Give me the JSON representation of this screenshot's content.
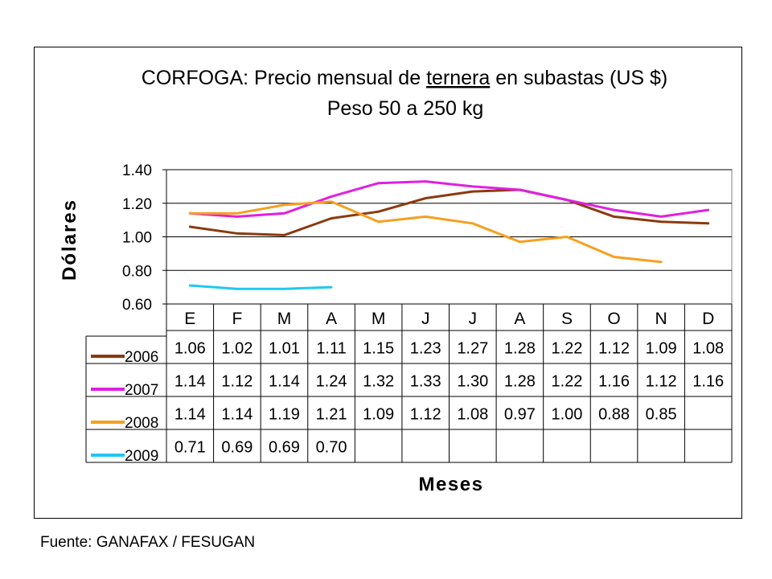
{
  "chart_data": {
    "type": "line",
    "title_parts": [
      "CORFOGA: Precio mensual de ",
      "ternera",
      " en subastas (US $)"
    ],
    "subtitle": "Peso 50 a 250 kg",
    "xlabel": "Meses",
    "ylabel": "Dólares",
    "categories": [
      "E",
      "F",
      "M",
      "A",
      "M",
      "J",
      "J",
      "A",
      "S",
      "O",
      "N",
      "D"
    ],
    "ylim": [
      0.6,
      1.4
    ],
    "yticks": [
      "0.60",
      "0.80",
      "1.00",
      "1.20",
      "1.40"
    ],
    "grid": true,
    "series": [
      {
        "name": "2006",
        "color": "#8B3A0F",
        "values": [
          1.06,
          1.02,
          1.01,
          1.11,
          1.15,
          1.23,
          1.27,
          1.28,
          1.22,
          1.12,
          1.09,
          1.08
        ],
        "labels": [
          "1.06",
          "1.02",
          "1.01",
          "1.11",
          "1.15",
          "1.23",
          "1.27",
          "1.28",
          "1.22",
          "1.12",
          "1.09",
          "1.08"
        ]
      },
      {
        "name": "2007",
        "color": "#E020E0",
        "values": [
          1.14,
          1.12,
          1.14,
          1.24,
          1.32,
          1.33,
          1.3,
          1.28,
          1.22,
          1.16,
          1.12,
          1.16
        ],
        "labels": [
          "1.14",
          "1.12",
          "1.14",
          "1.24",
          "1.32",
          "1.33",
          "1.30",
          "1.28",
          "1.22",
          "1.16",
          "1.12",
          "1.16"
        ]
      },
      {
        "name": "2008",
        "color": "#F5A020",
        "values": [
          1.14,
          1.14,
          1.19,
          1.21,
          1.09,
          1.12,
          1.08,
          0.97,
          1.0,
          0.88,
          0.85,
          null
        ],
        "labels": [
          "1.14",
          "1.14",
          "1.19",
          "1.21",
          "1.09",
          "1.12",
          "1.08",
          "0.97",
          "1.00",
          "0.88",
          "0.85",
          ""
        ]
      },
      {
        "name": "2009",
        "color": "#20C8F0",
        "values": [
          0.71,
          0.69,
          0.69,
          0.7,
          null,
          null,
          null,
          null,
          null,
          null,
          null,
          null
        ],
        "labels": [
          "0.71",
          "0.69",
          "0.69",
          "0.70",
          "",
          "",
          "",
          "",
          "",
          "",
          "",
          ""
        ]
      }
    ]
  },
  "footer": {
    "source": "Fuente: GANAFAX / FESUGAN"
  }
}
